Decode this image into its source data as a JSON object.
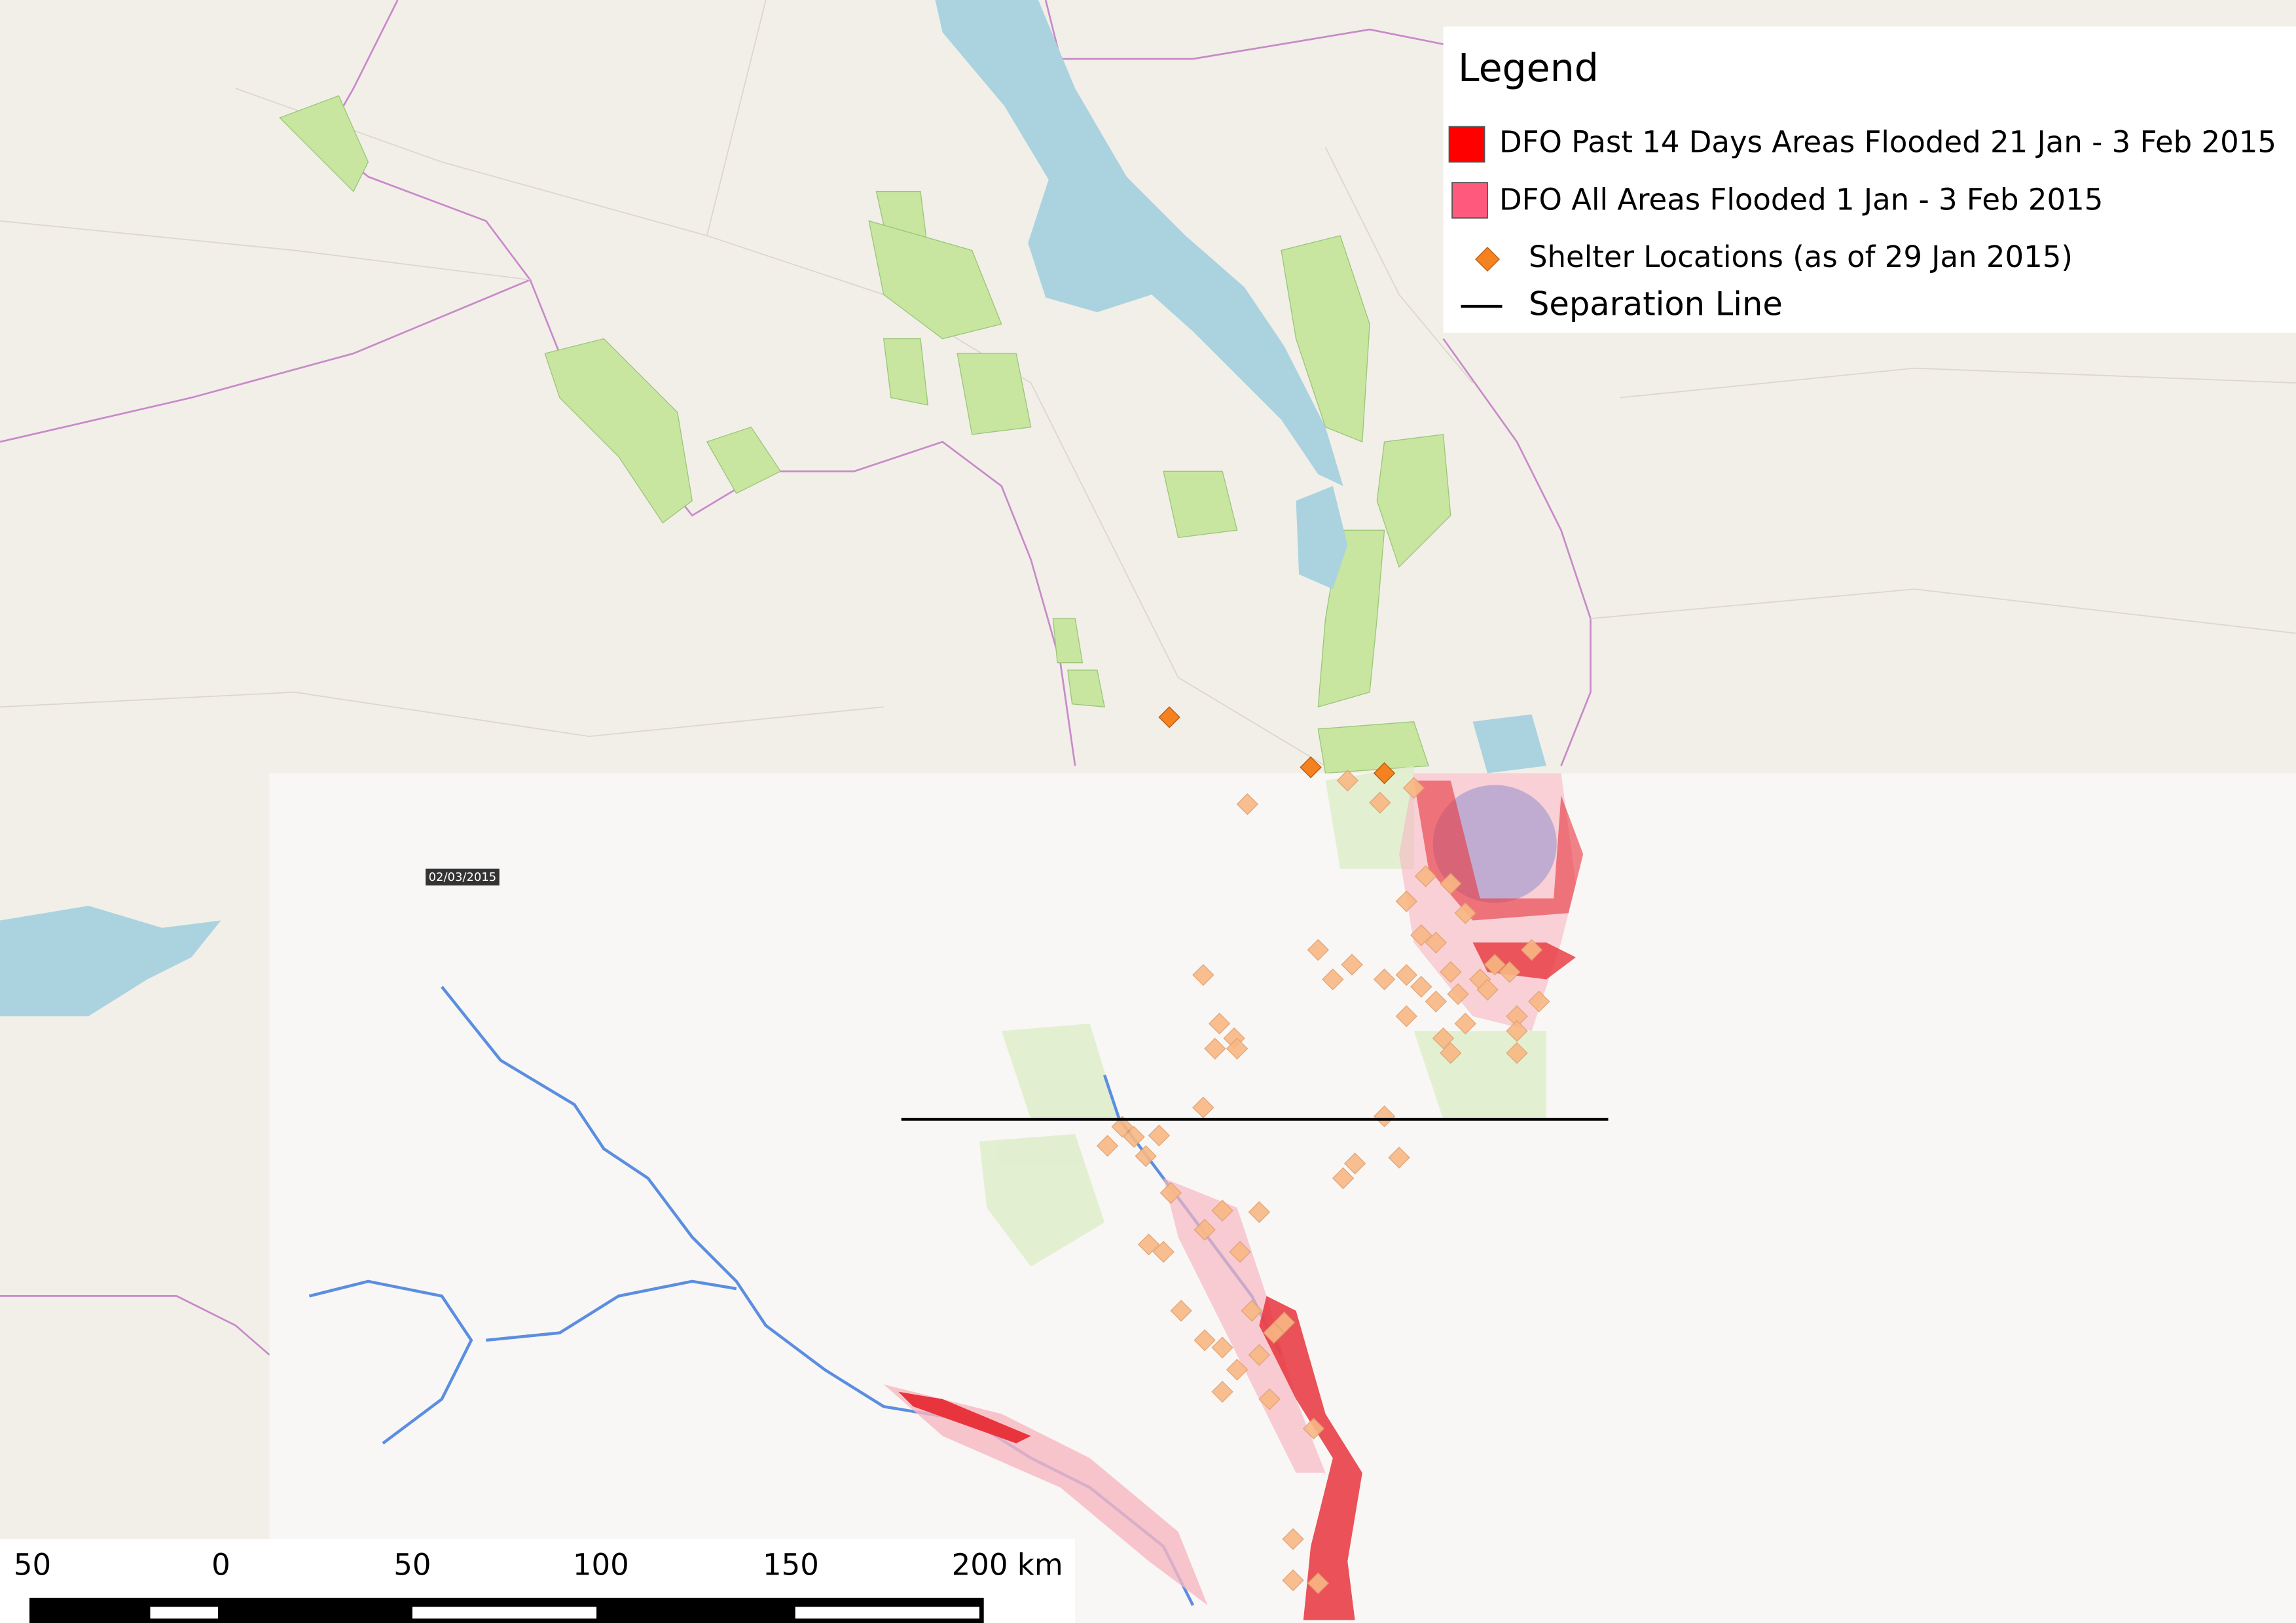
{
  "legend": {
    "title": "Legend",
    "items": [
      "DFO Past 14 Days Areas Flooded 21 Jan - 3 Feb 2015",
      "DFO All Areas Flooded 1 Jan - 3 Feb 2015",
      "Shelter Locations (as of 29 Jan 2015)",
      "Separation Line"
    ]
  },
  "date_label": "02/03/2015",
  "scale_bar": {
    "labels": [
      "50",
      "0",
      "50",
      "100",
      "150",
      "200 km"
    ]
  }
}
